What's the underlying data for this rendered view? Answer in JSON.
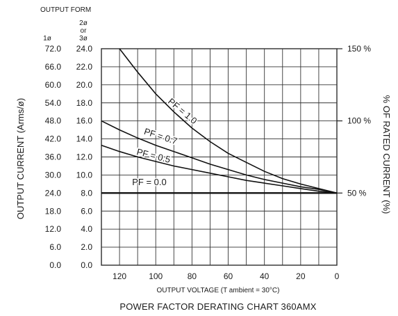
{
  "chart_data": {
    "type": "line",
    "title": "POWER FACTOR DERATING CHART 360AMX",
    "xlabel": "OUTPUT VOLTAGE (T ambient = 30°C)",
    "ylabel_left": "OUTPUT CURRENT (Arms/ø)",
    "ylabel_right": "% OF RATED CURRENT (%)",
    "output_form_label": "OUTPUT FORM",
    "column_headers": {
      "single": "1ø",
      "two_line1": "2ø",
      "two_line2": "or",
      "two_line3": "3ø"
    },
    "x_ticks": [
      "120",
      "100",
      "80",
      "60",
      "40",
      "20",
      "0"
    ],
    "x_tick_values": [
      120,
      100,
      80,
      60,
      40,
      20,
      0
    ],
    "xlim": [
      130,
      0
    ],
    "y_ticks_1phase": [
      "72.0",
      "66.0",
      "60.0",
      "54.0",
      "48.0",
      "42.0",
      "36.0",
      "30.0",
      "24.0",
      "18.0",
      "12.0",
      "6.0",
      "0.0"
    ],
    "y_ticks_3phase": [
      "24.0",
      "22.0",
      "20.0",
      "18.0",
      "16.0",
      "14.0",
      "12.0",
      "10.0",
      "8.0",
      "6.0",
      "4.0",
      "2.0",
      "0.0"
    ],
    "y_tick_values": [
      24,
      22,
      20,
      18,
      16,
      14,
      12,
      10,
      8,
      6,
      4,
      2,
      0
    ],
    "ylim": [
      0,
      24
    ],
    "right_ticks": [
      "150 %",
      "100 %",
      "50 %"
    ],
    "right_tick_values": [
      24,
      16,
      8
    ],
    "grid": true,
    "series": [
      {
        "name": "PF = 1.0",
        "x": [
          120,
          110,
          100,
          90,
          80,
          70,
          60,
          50,
          40,
          30,
          20,
          10,
          0
        ],
        "values": [
          24.0,
          21.4,
          19.0,
          17.0,
          15.2,
          13.7,
          12.4,
          11.4,
          10.4,
          9.6,
          9.0,
          8.5,
          8.0
        ]
      },
      {
        "name": "PF = 0.7",
        "x": [
          130,
          120,
          110,
          100,
          90,
          80,
          70,
          60,
          50,
          40,
          30,
          20,
          10,
          0
        ],
        "values": [
          16.0,
          15.0,
          14.1,
          13.3,
          12.6,
          11.9,
          11.2,
          10.6,
          10.0,
          9.5,
          9.1,
          8.7,
          8.4,
          8.0
        ]
      },
      {
        "name": "PF = 0.5",
        "x": [
          130,
          120,
          110,
          100,
          90,
          80,
          70,
          60,
          50,
          40,
          30,
          20,
          10,
          0
        ],
        "values": [
          13.3,
          12.6,
          12.0,
          11.5,
          11.0,
          10.6,
          10.2,
          9.8,
          9.4,
          9.1,
          8.8,
          8.5,
          8.2,
          8.0
        ]
      },
      {
        "name": "PF = 0.0",
        "x": [
          130,
          0
        ],
        "values": [
          8.0,
          8.0
        ]
      }
    ]
  }
}
